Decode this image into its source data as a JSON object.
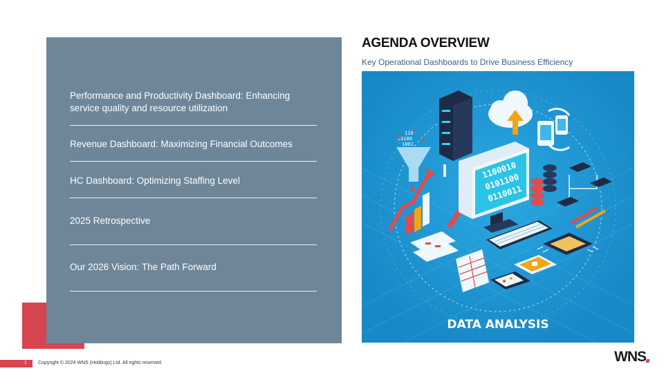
{
  "title": "AGENDA OVERVIEW",
  "subtitle": "Key Operational Dashboards to Drive Business Efficiency",
  "agenda": [
    "Performance and Productivity Dashboard: Enhancing service quality and resource utilization",
    "Revenue Dashboard: Maximizing Financial Outcomes",
    "HC Dashboard: Optimizing Staffing Level",
    "2025 Retrospective",
    "Our 2026 Vision: The Path Forward"
  ],
  "illustration": {
    "caption": "DATA ANALYSIS",
    "binary_lines": [
      "1100010",
      "0101100",
      "0110011"
    ]
  },
  "footer": {
    "page_number": "1",
    "copyright": "Copyright © 2024 WNS (Holdings) Ltd. All rights reserved."
  },
  "logo": "WNS",
  "colors": {
    "panel": "#6e8698",
    "accent": "#d64550",
    "illustration_bg": "#1e9ad6"
  }
}
